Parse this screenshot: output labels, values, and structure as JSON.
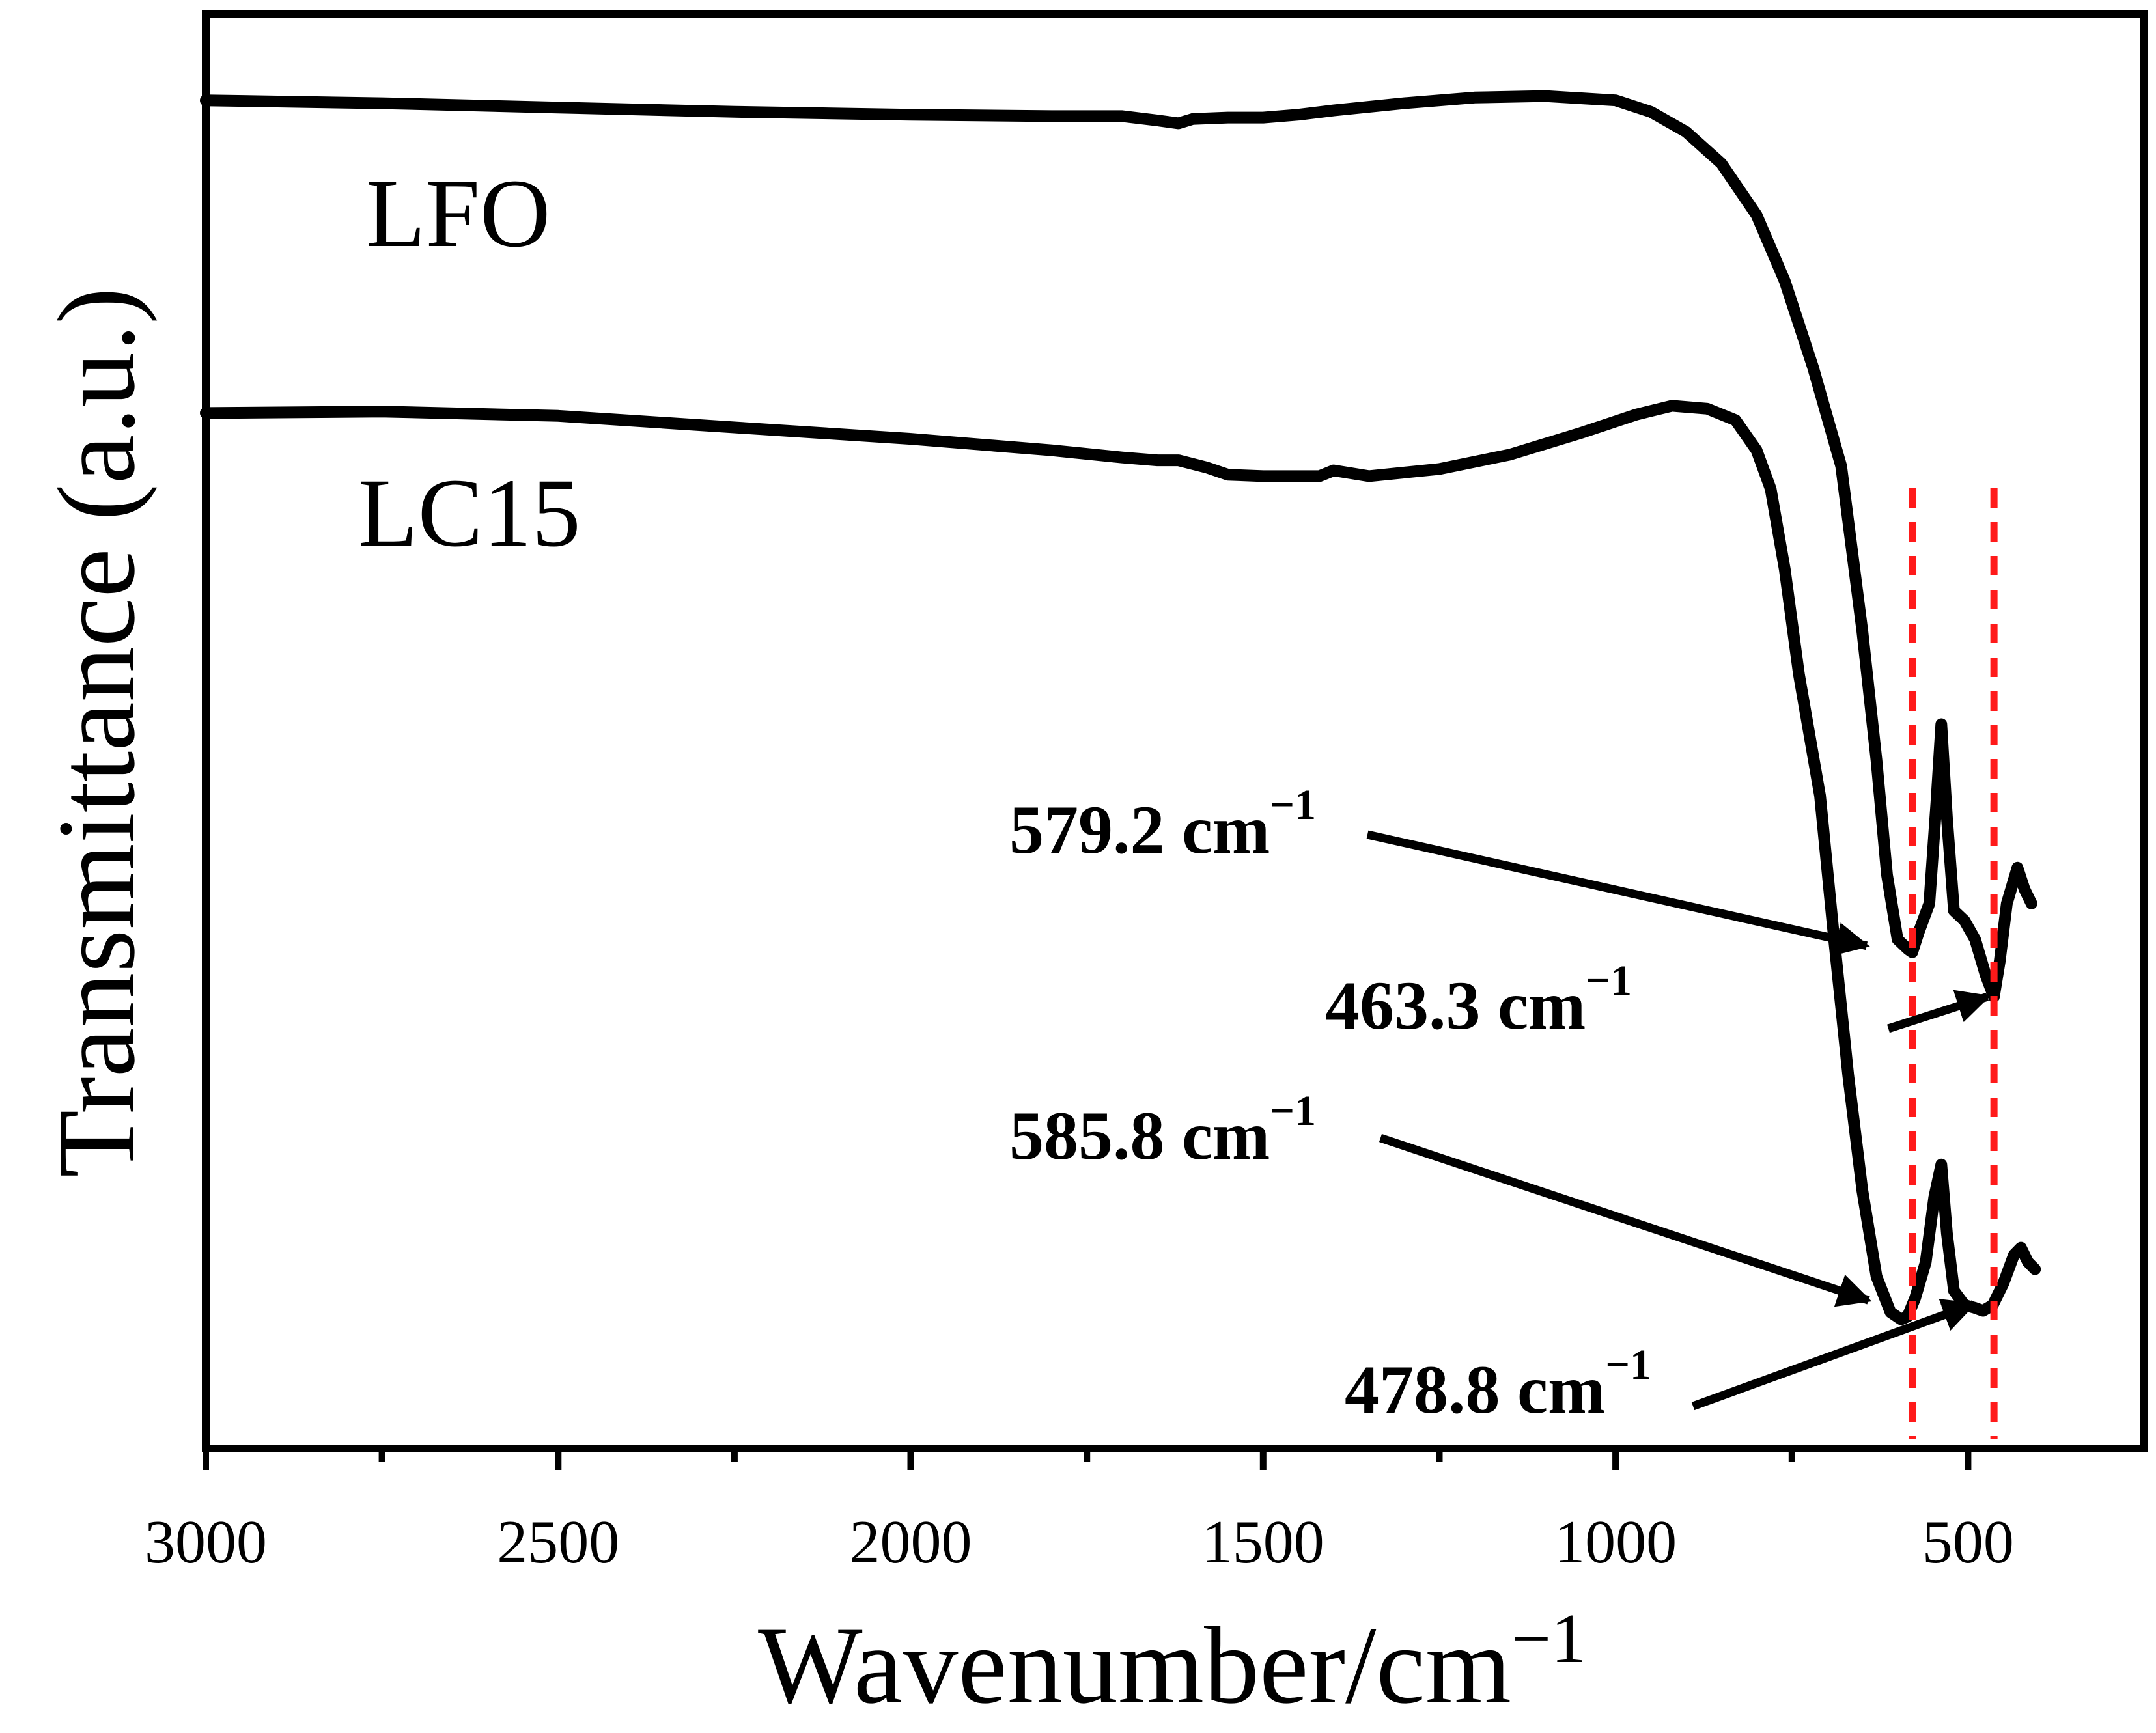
{
  "chart_data": {
    "type": "line",
    "title": "",
    "xlabel": "Wavenumber/cm",
    "xlabel_superscript": "−1",
    "ylabel": "Transmittance (a.u.)",
    "xlim": [
      3000,
      250
    ],
    "x_reversed": true,
    "ylim": [
      0,
      100
    ],
    "y_ticks_shown": false,
    "grid": false,
    "x_ticks": [
      3000,
      2500,
      2000,
      1500,
      1000,
      500
    ],
    "x_tick_labels": [
      "3000",
      "2500",
      "2000",
      "1500",
      "1000",
      "500"
    ],
    "x_minor_ticks": [
      2750,
      2250,
      1750,
      1250,
      750,
      250
    ],
    "series": [
      {
        "name": "LFO",
        "label": "LFO",
        "color": "#000000",
        "points": [
          [
            3000,
            94.0
          ],
          [
            2750,
            93.8
          ],
          [
            2500,
            93.5
          ],
          [
            2250,
            93.2
          ],
          [
            2000,
            93.0
          ],
          [
            1800,
            92.9
          ],
          [
            1700,
            92.9
          ],
          [
            1650,
            92.6
          ],
          [
            1620,
            92.4
          ],
          [
            1600,
            92.7
          ],
          [
            1550,
            92.8
          ],
          [
            1500,
            92.8
          ],
          [
            1450,
            93.0
          ],
          [
            1400,
            93.3
          ],
          [
            1300,
            93.8
          ],
          [
            1200,
            94.2
          ],
          [
            1100,
            94.3
          ],
          [
            1000,
            94.0
          ],
          [
            950,
            93.2
          ],
          [
            900,
            91.8
          ],
          [
            850,
            89.6
          ],
          [
            800,
            86.0
          ],
          [
            760,
            81.4
          ],
          [
            720,
            75.4
          ],
          [
            680,
            68.5
          ],
          [
            650,
            57.0
          ],
          [
            630,
            48.0
          ],
          [
            615,
            40.0
          ],
          [
            600,
            35.5
          ],
          [
            585,
            34.8
          ],
          [
            579.2,
            34.6
          ],
          [
            570,
            36.0
          ],
          [
            555,
            38.0
          ],
          [
            545,
            45.0
          ],
          [
            538,
            50.5
          ],
          [
            530,
            44.0
          ],
          [
            520,
            37.5
          ],
          [
            505,
            36.8
          ],
          [
            490,
            35.5
          ],
          [
            475,
            33.0
          ],
          [
            463.3,
            31.5
          ],
          [
            455,
            34.0
          ],
          [
            445,
            38.0
          ],
          [
            430,
            40.5
          ],
          [
            420,
            39.0
          ],
          [
            410,
            38.0
          ]
        ]
      },
      {
        "name": "LC15",
        "label": "LC15",
        "color": "#000000",
        "points": [
          [
            3000,
            72.2
          ],
          [
            2750,
            72.3
          ],
          [
            2500,
            72.0
          ],
          [
            2250,
            71.2
          ],
          [
            2000,
            70.4
          ],
          [
            1800,
            69.6
          ],
          [
            1700,
            69.1
          ],
          [
            1650,
            68.9
          ],
          [
            1620,
            68.9
          ],
          [
            1580,
            68.4
          ],
          [
            1550,
            67.9
          ],
          [
            1500,
            67.8
          ],
          [
            1420,
            67.8
          ],
          [
            1400,
            68.2
          ],
          [
            1350,
            67.8
          ],
          [
            1250,
            68.3
          ],
          [
            1150,
            69.3
          ],
          [
            1050,
            70.8
          ],
          [
            970,
            72.1
          ],
          [
            920,
            72.7
          ],
          [
            870,
            72.5
          ],
          [
            830,
            71.7
          ],
          [
            800,
            69.6
          ],
          [
            780,
            66.9
          ],
          [
            760,
            61.3
          ],
          [
            740,
            54.0
          ],
          [
            710,
            45.5
          ],
          [
            690,
            35.5
          ],
          [
            670,
            26.0
          ],
          [
            650,
            18.0
          ],
          [
            630,
            12.0
          ],
          [
            610,
            9.5
          ],
          [
            595,
            9.0
          ],
          [
            585.8,
            9.2
          ],
          [
            575,
            10.5
          ],
          [
            560,
            13.0
          ],
          [
            548,
            17.5
          ],
          [
            538,
            19.8
          ],
          [
            530,
            15.0
          ],
          [
            520,
            11.0
          ],
          [
            505,
            10.0
          ],
          [
            490,
            9.8
          ],
          [
            478.8,
            9.6
          ],
          [
            465,
            10.0
          ],
          [
            450,
            11.5
          ],
          [
            435,
            13.5
          ],
          [
            425,
            14.0
          ],
          [
            415,
            13.0
          ],
          [
            405,
            12.5
          ]
        ]
      }
    ],
    "reference_lines": {
      "style": "dashed",
      "color": "#ff1a1a",
      "x": [
        579.2,
        463.3
      ]
    },
    "annotations": [
      {
        "text": "579.2 cm",
        "superscript": "−1",
        "series": "LFO",
        "x": 579.2
      },
      {
        "text": "463.3 cm",
        "superscript": "−1",
        "series": "LFO",
        "x": 463.3
      },
      {
        "text": "585.8 cm",
        "superscript": "−1",
        "series": "LC15",
        "x": 585.8
      },
      {
        "text": "478.8 cm",
        "superscript": "−1",
        "series": "LC15",
        "x": 478.8
      }
    ]
  }
}
